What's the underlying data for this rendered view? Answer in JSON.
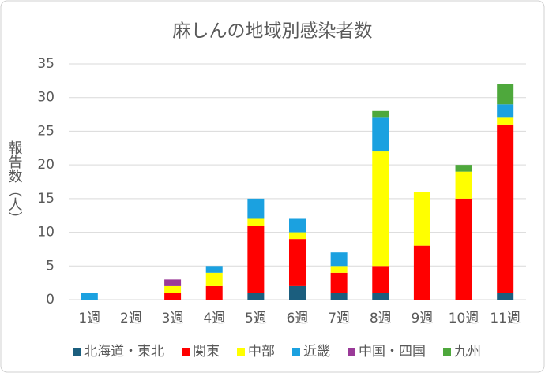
{
  "chart_data": {
    "type": "stacked_bar",
    "title": "麻しんの地域別感染者数",
    "y_label": "報告数（人）",
    "categories": [
      "1週",
      "2週",
      "3週",
      "4週",
      "5週",
      "6週",
      "7週",
      "8週",
      "9週",
      "10週",
      "11週"
    ],
    "series": [
      {
        "name": "北海道・東北",
        "color": "#1b5e7e",
        "values": [
          0,
          0,
          0,
          0,
          1,
          2,
          1,
          1,
          0,
          0,
          1
        ]
      },
      {
        "name": "関東",
        "color": "#ff0000",
        "values": [
          0,
          0,
          1,
          2,
          10,
          7,
          3,
          4,
          8,
          15,
          25
        ]
      },
      {
        "name": "中部",
        "color": "#ffff00",
        "values": [
          0,
          0,
          1,
          2,
          1,
          1,
          1,
          17,
          8,
          4,
          1
        ]
      },
      {
        "name": "近畿",
        "color": "#1ba1e0",
        "values": [
          1,
          0,
          0,
          1,
          3,
          2,
          2,
          5,
          0,
          0,
          2
        ]
      },
      {
        "name": "中国・四国",
        "color": "#9a3a98",
        "values": [
          0,
          0,
          1,
          0,
          0,
          0,
          0,
          0,
          0,
          0,
          0
        ]
      },
      {
        "name": "九州",
        "color": "#4ea83c",
        "values": [
          0,
          0,
          0,
          0,
          0,
          0,
          0,
          1,
          0,
          1,
          3
        ]
      }
    ],
    "ylim": [
      0,
      35
    ],
    "yticks": [
      0,
      5,
      10,
      15,
      20,
      25,
      30,
      35
    ],
    "grid": true,
    "legend": "bottom"
  }
}
